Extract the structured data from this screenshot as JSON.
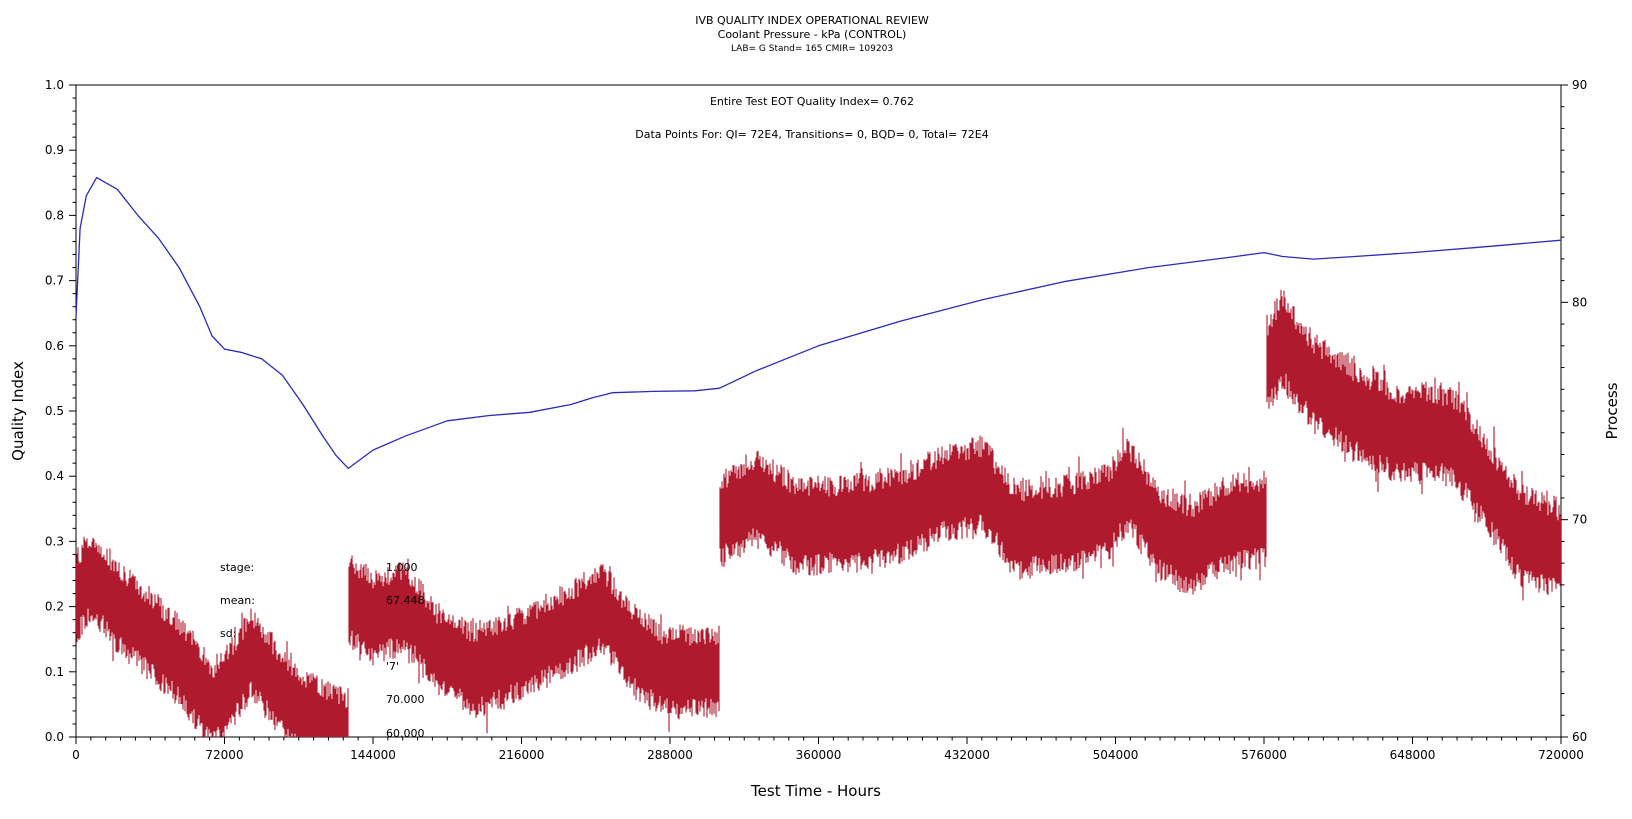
{
  "header": {
    "title": "IVB QUALITY INDEX OPERATIONAL REVIEW",
    "subtitle": "Coolant Pressure - kPa (CONTROL)",
    "line3": "LAB= G Stand= 165 CMIR= 109203"
  },
  "annotations": {
    "quality_index": "Entire Test EOT Quality Index=   0.762",
    "data_points": "Data Points For: QI=  72E4, Transitions=     0, BQD=     0, Total=  72E4"
  },
  "stats": [
    {
      "label": "stage:",
      "value": "1.000"
    },
    {
      "label": "mean:",
      "value": "67.448"
    },
    {
      "label": "sd:",
      "value": ""
    },
    {
      "label": "",
      "value": "'7'"
    },
    {
      "label": "",
      "value": "70.000"
    },
    {
      "label": ":",
      "value": "60.000"
    }
  ],
  "colors": {
    "quality_index_line": "#2b2bb8",
    "process_trace": "#b01a2e",
    "axes": "#000000",
    "background": "#ffffff"
  },
  "chart_data": {
    "type": "line",
    "title": "IVB QUALITY INDEX OPERATIONAL REVIEW",
    "subtitle": "Coolant Pressure - kPa (CONTROL)",
    "xlabel": "Test Time - Hours",
    "ylabel": "Quality Index",
    "y2label": "Process",
    "xlim": [
      0,
      720000
    ],
    "ylim": [
      0,
      1.0
    ],
    "y2lim": [
      60,
      90
    ],
    "x_ticks": [
      0,
      72000,
      144000,
      216000,
      288000,
      360000,
      432000,
      504000,
      576000,
      648000,
      720000
    ],
    "x_tick_labels": [
      "0",
      "72000",
      "144000",
      "216000",
      "288000",
      "360000",
      "432000",
      "504000",
      "576000",
      "648000",
      "720000"
    ],
    "y_ticks": [
      0.0,
      0.1,
      0.2,
      0.3,
      0.4,
      0.5,
      0.6,
      0.7,
      0.8,
      0.9,
      1.0
    ],
    "y_tick_labels": [
      "0.0",
      "0.1",
      "0.2",
      "0.3",
      "0.4",
      "0.5",
      "0.6",
      "0.7",
      "0.8",
      "0.9",
      "1.0"
    ],
    "y2_ticks": [
      60,
      70,
      80,
      90
    ],
    "y2_tick_labels": [
      "60",
      "70",
      "80",
      "90"
    ],
    "grid": false,
    "series": [
      {
        "axis": "left",
        "style": "line",
        "x": [
          0,
          2000,
          5000,
          10000,
          20000,
          30000,
          40000,
          50000,
          60000,
          66000,
          72000,
          80000,
          90000,
          100000,
          110000,
          120000,
          126000,
          132000,
          144000,
          160000,
          180000,
          200000,
          220000,
          240000,
          250000,
          260000,
          280000,
          300000,
          312000,
          330000,
          360000,
          400000,
          440000,
          480000,
          520000,
          560000,
          576000,
          585000,
          600000,
          620000,
          648000,
          680000,
          720000
        ],
        "y": [
          0.645,
          0.78,
          0.83,
          0.858,
          0.84,
          0.8,
          0.765,
          0.72,
          0.66,
          0.615,
          0.595,
          0.59,
          0.58,
          0.555,
          0.51,
          0.46,
          0.432,
          0.412,
          0.44,
          0.462,
          0.485,
          0.493,
          0.498,
          0.51,
          0.52,
          0.528,
          0.53,
          0.531,
          0.535,
          0.562,
          0.6,
          0.638,
          0.671,
          0.699,
          0.72,
          0.736,
          0.743,
          0.737,
          0.733,
          0.737,
          0.743,
          0.751,
          0.762
        ]
      },
      {
        "axis": "right",
        "style": "noise band",
        "x": [
          0,
          8000,
          20000,
          35000,
          50000,
          60000,
          66000,
          72000,
          85000,
          96000,
          110000,
          125000,
          131999,
          132000,
          145000,
          160000,
          175000,
          195000,
          215000,
          240000,
          255000,
          270000,
          285000,
          311999,
          312000,
          330000,
          350000,
          375000,
          400000,
          420000,
          440000,
          455000,
          480000,
          500000,
          510000,
          525000,
          540000,
          560000,
          576999,
          577000,
          585000,
          600000,
          620000,
          640000,
          660000,
          670000,
          685000,
          700000,
          720000
        ],
        "y": [
          66.5,
          67.4,
          66.0,
          64.8,
          63.5,
          62.3,
          61.4,
          62.0,
          63.8,
          62.5,
          61.0,
          60.3,
          60.1,
          66.3,
          65.5,
          66.0,
          64.0,
          63.0,
          63.8,
          65.0,
          66.0,
          64.0,
          63.0,
          63.0,
          70.0,
          71.0,
          69.7,
          69.8,
          70.2,
          71.2,
          71.6,
          69.5,
          69.8,
          70.3,
          71.6,
          69.5,
          68.7,
          69.9,
          70.0,
          77.0,
          78.3,
          76.3,
          75.0,
          74.0,
          74.0,
          73.6,
          71.5,
          69.3,
          68.6
        ],
        "band": [
          2.2,
          2.2,
          2.2,
          2.2,
          2.2,
          2.2,
          2.2,
          2.2,
          2.2,
          2.2,
          2.2,
          2.2,
          2.2,
          2.2,
          2.2,
          2.2,
          2.2,
          2.2,
          2.2,
          2.2,
          2.2,
          2.2,
          2.2,
          2.2,
          2.3,
          2.3,
          2.3,
          2.3,
          2.3,
          2.3,
          2.3,
          2.3,
          2.3,
          2.3,
          2.3,
          2.3,
          2.3,
          2.3,
          2.3,
          2.4,
          2.4,
          2.4,
          2.4,
          2.4,
          2.4,
          2.4,
          2.4,
          2.4,
          2.4
        ]
      }
    ]
  }
}
